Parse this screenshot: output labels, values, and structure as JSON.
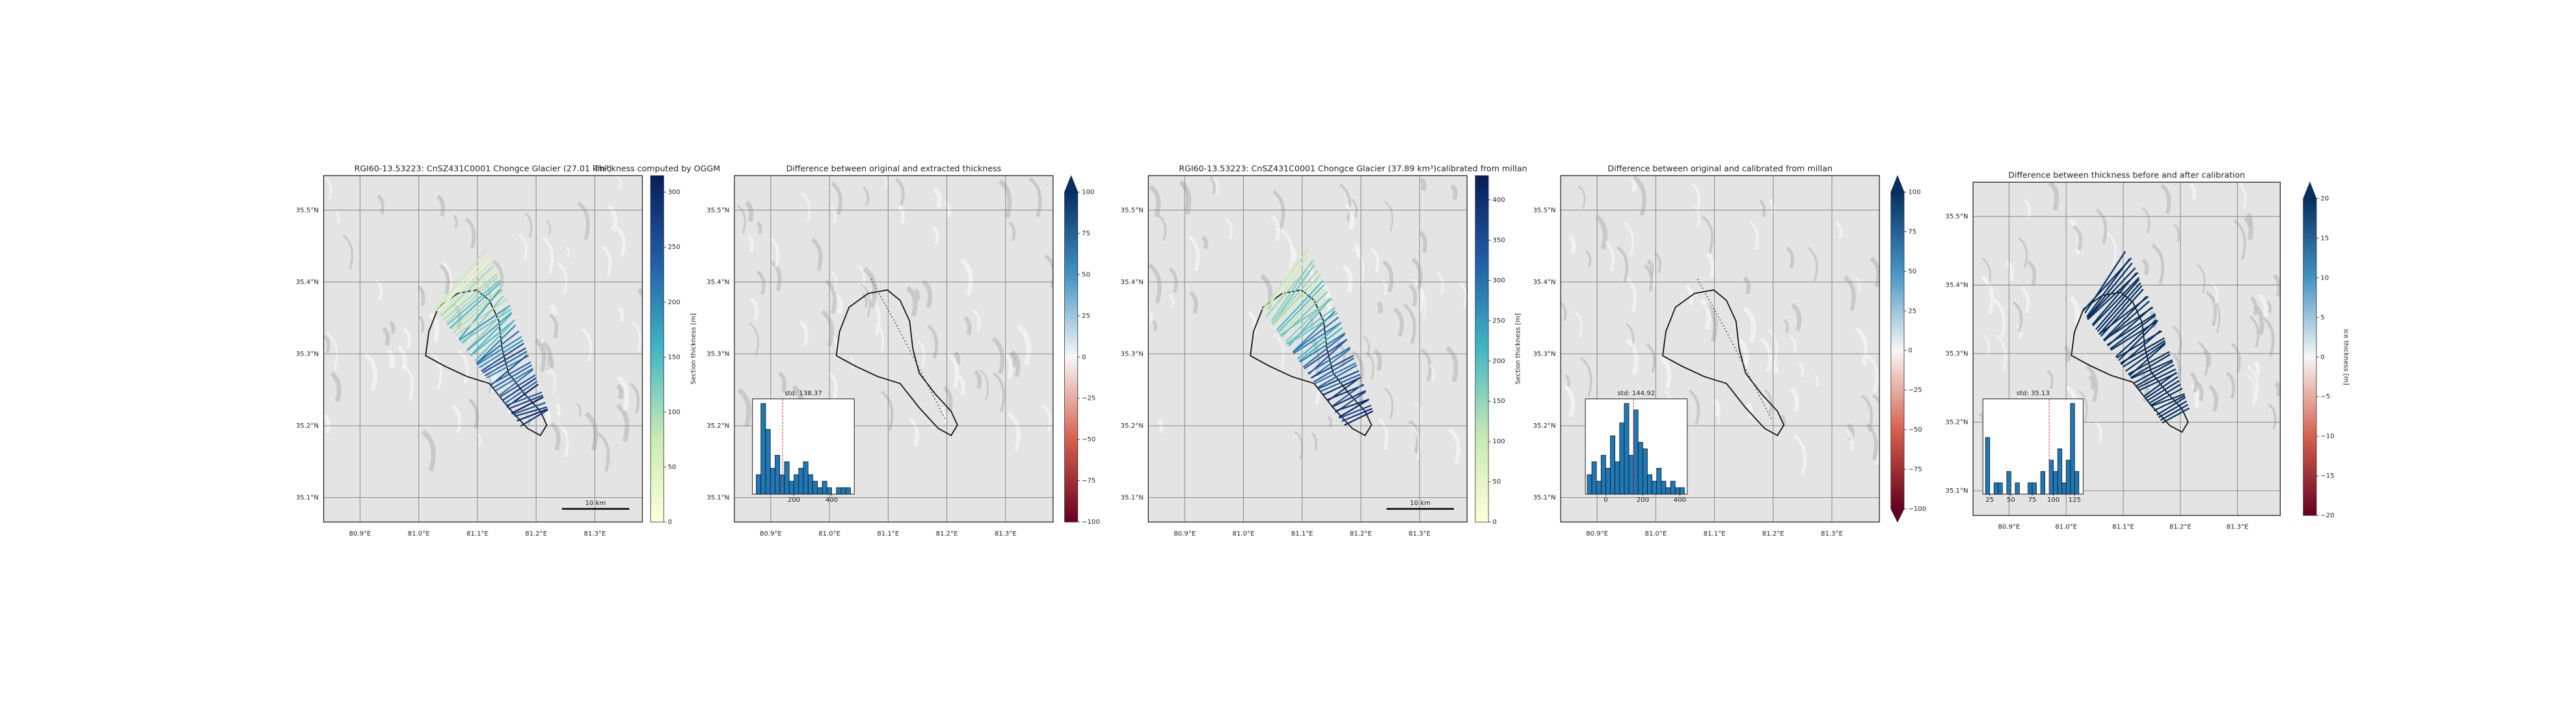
{
  "chart_data": [
    {
      "type": "map",
      "title": "RGI60-13.53223: CnSZ431C0001 Chongce Glacier (27.01 km³)",
      "xlim": [
        80.838,
        81.381
      ],
      "ylim": [
        35.066,
        35.548
      ],
      "grid": true,
      "xticks": [
        {
          "value": 80.9,
          "label": "80.9°E"
        },
        {
          "value": 81.0,
          "label": "81.0°E"
        },
        {
          "value": 81.1,
          "label": "81.1°E"
        },
        {
          "value": 81.2,
          "label": "81.2°E"
        },
        {
          "value": 81.3,
          "label": "81.3°E"
        }
      ],
      "yticks": [
        {
          "value": 35.5,
          "label": "35.5°N"
        },
        {
          "value": 35.4,
          "label": "35.4°N"
        },
        {
          "value": 35.3,
          "label": "35.3°N"
        },
        {
          "value": 35.2,
          "label": "35.2°N"
        },
        {
          "value": 35.1,
          "label": "35.1°N"
        }
      ],
      "scalebar": "10 km",
      "colorbar": {
        "title": "Thickness computed by OGGM",
        "label": "Section thickness [m]",
        "lim": [
          0,
          315
        ],
        "ticks": [
          0,
          50,
          100,
          150,
          200,
          250,
          300
        ],
        "colormap": [
          "#ffffd9",
          "#c7e9b4",
          "#41b6c4",
          "#225ea8",
          "#081d58"
        ]
      }
    },
    {
      "type": "map",
      "title": "Difference between original and extracted thickness",
      "xlim": [
        80.838,
        81.381
      ],
      "ylim": [
        35.066,
        35.548
      ],
      "grid": true,
      "xticks": [
        {
          "value": 80.9,
          "label": "80.9°E"
        },
        {
          "value": 81.0,
          "label": "81.0°E"
        },
        {
          "value": 81.1,
          "label": "81.1°E"
        },
        {
          "value": 81.2,
          "label": "81.2°E"
        },
        {
          "value": 81.3,
          "label": "81.3°E"
        }
      ],
      "yticks": [
        {
          "value": 35.5,
          "label": "35.5°N"
        },
        {
          "value": 35.4,
          "label": "35.4°N"
        },
        {
          "value": 35.3,
          "label": "35.3°N"
        },
        {
          "value": 35.2,
          "label": "35.2°N"
        },
        {
          "value": 35.1,
          "label": "35.1°N"
        }
      ],
      "colorbar": {
        "lim": [
          -100,
          100
        ],
        "extend": "max",
        "ticks": [
          {
            "value": -100,
            "label": "−100"
          },
          {
            "value": -75,
            "label": "−75"
          },
          {
            "value": -50,
            "label": "−50"
          },
          {
            "value": -25,
            "label": "−25"
          },
          0,
          25,
          50,
          75,
          100
        ],
        "colormap": [
          "#67001f",
          "#d6604d",
          "#f7f7f7",
          "#4393c3",
          "#053061"
        ]
      },
      "inset": {
        "type": "histogram",
        "title": "std: 138.37",
        "xlim": [
          -20,
          520
        ],
        "xticks": [
          200,
          400
        ],
        "bins": [
          0,
          25,
          50,
          75,
          100,
          125,
          150,
          175,
          200,
          225,
          250,
          275,
          300,
          325,
          350,
          375,
          400,
          425,
          450,
          475,
          500
        ],
        "counts": [
          3,
          14,
          10,
          4,
          6,
          3,
          5,
          2,
          3,
          4,
          5,
          3,
          2,
          1,
          2,
          1,
          0,
          1,
          1,
          1
        ],
        "color": "#1f77b4",
        "vline": 140,
        "vline_color": "#e03030"
      }
    },
    {
      "type": "map",
      "title": "RGI60-13.53223: CnSZ431C0001 Chongce Glacier (37.89 km³)",
      "xlim": [
        80.838,
        81.381
      ],
      "ylim": [
        35.066,
        35.548
      ],
      "grid": true,
      "xticks": [
        {
          "value": 80.9,
          "label": "80.9°E"
        },
        {
          "value": 81.0,
          "label": "81.0°E"
        },
        {
          "value": 81.1,
          "label": "81.1°E"
        },
        {
          "value": 81.2,
          "label": "81.2°E"
        },
        {
          "value": 81.3,
          "label": "81.3°E"
        }
      ],
      "yticks": [
        {
          "value": 35.5,
          "label": "35.5°N"
        },
        {
          "value": 35.4,
          "label": "35.4°N"
        },
        {
          "value": 35.3,
          "label": "35.3°N"
        },
        {
          "value": 35.2,
          "label": "35.2°N"
        },
        {
          "value": 35.1,
          "label": "35.1°N"
        }
      ],
      "scalebar": "10 km",
      "colorbar": {
        "title": "calibrated from millan",
        "label": "Section thickness [m]",
        "lim": [
          0,
          430
        ],
        "ticks": [
          0,
          50,
          100,
          150,
          200,
          250,
          300,
          350,
          400
        ],
        "colormap": [
          "#ffffd9",
          "#c7e9b4",
          "#41b6c4",
          "#225ea8",
          "#081d58"
        ]
      }
    },
    {
      "type": "map",
      "title": "Difference between original and calibrated from millan",
      "xlim": [
        80.838,
        81.381
      ],
      "ylim": [
        35.066,
        35.548
      ],
      "grid": true,
      "xticks": [
        {
          "value": 80.9,
          "label": "80.9°E"
        },
        {
          "value": 81.0,
          "label": "81.0°E"
        },
        {
          "value": 81.1,
          "label": "81.1°E"
        },
        {
          "value": 81.2,
          "label": "81.2°E"
        },
        {
          "value": 81.3,
          "label": "81.3°E"
        }
      ],
      "yticks": [
        {
          "value": 35.5,
          "label": "35.5°N"
        },
        {
          "value": 35.4,
          "label": "35.4°N"
        },
        {
          "value": 35.3,
          "label": "35.3°N"
        },
        {
          "value": 35.2,
          "label": "35.2°N"
        },
        {
          "value": 35.1,
          "label": "35.1°N"
        }
      ],
      "colorbar": {
        "lim": [
          -100,
          100
        ],
        "extend": "both",
        "ticks": [
          {
            "value": -100,
            "label": "−100"
          },
          {
            "value": -75,
            "label": "−75"
          },
          {
            "value": -50,
            "label": "−50"
          },
          {
            "value": -25,
            "label": "−25"
          },
          0,
          25,
          50,
          75,
          100
        ],
        "colormap": [
          "#67001f",
          "#d6604d",
          "#f7f7f7",
          "#4393c3",
          "#053061"
        ]
      },
      "inset": {
        "type": "histogram",
        "title": "std: 144.92",
        "xlim": [
          -110,
          440
        ],
        "xticks": [
          0,
          200,
          400
        ],
        "bins": [
          -100,
          -75,
          -50,
          -25,
          0,
          25,
          50,
          75,
          100,
          125,
          150,
          175,
          200,
          225,
          250,
          275,
          300,
          325,
          350,
          375,
          400,
          425
        ],
        "counts": [
          3,
          5,
          2,
          6,
          4,
          9,
          5,
          11,
          14,
          6,
          13,
          8,
          7,
          3,
          2,
          4,
          2,
          1,
          2,
          1,
          1
        ],
        "color": "#1f77b4",
        "vline": 150,
        "vline_color": "#e03030"
      }
    },
    {
      "type": "map",
      "title": "Difference between thickness before and after calibration",
      "xlim": [
        80.837,
        81.375
      ],
      "ylim": [
        35.064,
        35.55
      ],
      "grid": true,
      "xticks": [
        {
          "value": 80.9,
          "label": "80.9°E"
        },
        {
          "value": 81.0,
          "label": "81.0°E"
        },
        {
          "value": 81.1,
          "label": "81.1°E"
        },
        {
          "value": 81.2,
          "label": "81.2°E"
        },
        {
          "value": 81.3,
          "label": "81.3°E"
        }
      ],
      "yticks": [
        {
          "value": 35.5,
          "label": "35.5°N"
        },
        {
          "value": 35.4,
          "label": "35.4°N"
        },
        {
          "value": 35.3,
          "label": "35.3°N"
        },
        {
          "value": 35.2,
          "label": "35.2°N"
        },
        {
          "value": 35.1,
          "label": "35.1°N"
        }
      ],
      "colorbar": {
        "label": "ice thickness [m]",
        "lim": [
          -20,
          20
        ],
        "extend": "max",
        "ticks": [
          {
            "value": -20,
            "label": "−20"
          },
          {
            "value": -15,
            "label": "−15"
          },
          {
            "value": -10,
            "label": "−10"
          },
          {
            "value": -5,
            "label": "−5"
          },
          0,
          5,
          10,
          15,
          20
        ],
        "colormap": [
          "#67001f",
          "#d6604d",
          "#f7f7f7",
          "#4393c3",
          "#053061"
        ]
      },
      "inset": {
        "type": "histogram",
        "title": "std: 35.13",
        "xlim": [
          17,
          135
        ],
        "xticks": [
          25,
          50,
          75,
          100,
          125
        ],
        "bins": [
          20,
          25,
          30,
          35,
          40,
          45,
          50,
          55,
          60,
          65,
          70,
          75,
          80,
          85,
          90,
          95,
          100,
          105,
          110,
          115,
          120,
          125,
          130,
          135
        ],
        "counts": [
          5,
          0,
          1,
          1,
          0,
          2,
          0,
          1,
          0,
          0,
          1,
          1,
          0,
          2,
          0,
          3,
          2,
          4,
          1,
          3,
          8,
          2,
          0
        ],
        "color": "#1f77b4",
        "vline": 95,
        "vline_color": "#e03030"
      }
    }
  ]
}
